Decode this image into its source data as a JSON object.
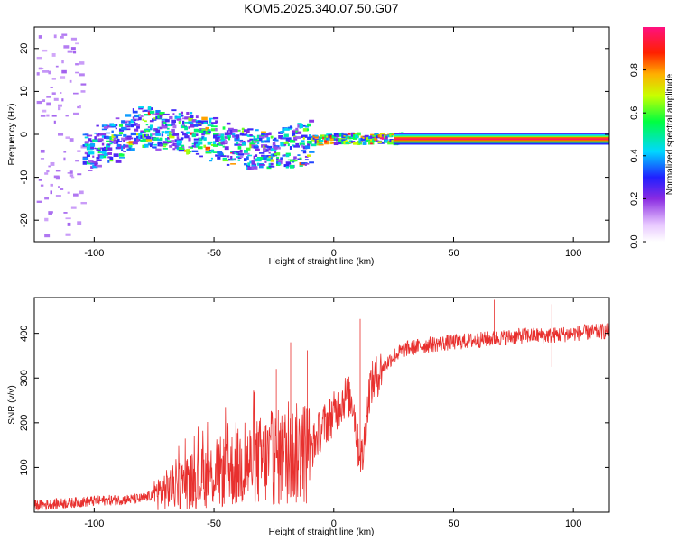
{
  "chart_data": [
    {
      "type": "heatmap",
      "title": "KOM5.2025.340.07.50.G07",
      "xlabel": "Height of straight line (km)",
      "ylabel": "Frequency (Hz)",
      "xlim": [
        -125,
        115
      ],
      "ylim": [
        -25,
        25
      ],
      "xticks": [
        -100,
        -50,
        0,
        50,
        100
      ],
      "yticks": [
        -20,
        -10,
        0,
        10,
        20
      ],
      "xtick_labels": [
        "-100",
        "-50",
        "0",
        "50",
        "100"
      ],
      "ytick_labels": [
        "-20",
        "-10",
        "0",
        "10",
        "20"
      ],
      "ridge": {
        "x": [
          -105,
          -90,
          -80,
          -70,
          -60,
          -50,
          -40,
          -30,
          -20,
          -10,
          0,
          10,
          20,
          30,
          50,
          70,
          90,
          110
        ],
        "y": [
          -4,
          -1,
          1.5,
          1,
          0,
          -1.5,
          -3,
          -4,
          -3,
          -1.5,
          -1,
          -1,
          -1,
          -1,
          -1,
          -1,
          -1,
          -1
        ]
      },
      "colorbar": {
        "label": "Normalized spectral amplitude",
        "min": 0,
        "max": 1,
        "ticks": [
          0.0,
          0.2,
          0.4,
          0.6,
          0.8
        ],
        "tick_labels": [
          "0.0",
          "0.2",
          "0.4",
          "0.6",
          "0.8"
        ]
      }
    },
    {
      "type": "line",
      "title": "",
      "xlabel": "Height of straight line (km)",
      "ylabel": "SNR (v/v)",
      "xlim": [
        -125,
        115
      ],
      "ylim": [
        0,
        480
      ],
      "xticks": [
        -100,
        -50,
        0,
        50,
        100
      ],
      "yticks": [
        100,
        200,
        300,
        400
      ],
      "xtick_labels": [
        "-100",
        "-50",
        "0",
        "50",
        "100"
      ],
      "ytick_labels": [
        "100",
        "200",
        "300",
        "400"
      ],
      "line_color": "#e8302e",
      "trend": {
        "x": [
          -125,
          -100,
          -80,
          -70,
          -60,
          -50,
          -40,
          -30,
          -20,
          -10,
          -5,
          0,
          5,
          8,
          10,
          12,
          15,
          20,
          25,
          30,
          40,
          50,
          60,
          70,
          80,
          90,
          100,
          115
        ],
        "y": [
          15,
          25,
          30,
          50,
          70,
          85,
          100,
          115,
          125,
          135,
          190,
          220,
          260,
          250,
          150,
          120,
          280,
          320,
          350,
          365,
          375,
          380,
          385,
          390,
          395,
          395,
          400,
          405
        ]
      },
      "spikes": [
        {
          "x": -18,
          "y": 380
        },
        {
          "x": -11,
          "y": 362
        },
        {
          "x": -24,
          "y": 320
        },
        {
          "x": 11,
          "y": 432
        },
        {
          "x": 67,
          "y": 475
        },
        {
          "x": 91,
          "y": 465
        },
        {
          "x": 91,
          "y": 325
        },
        {
          "x": 12,
          "y": 95
        }
      ]
    }
  ]
}
